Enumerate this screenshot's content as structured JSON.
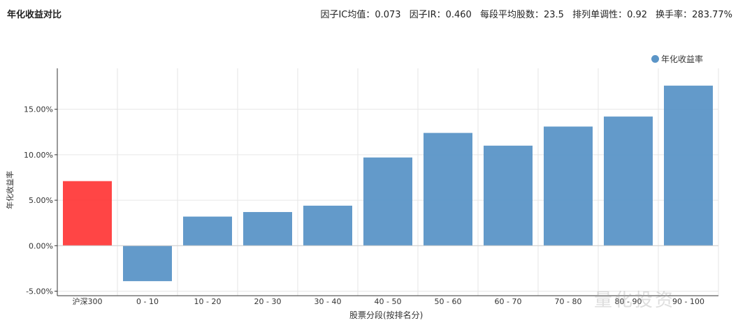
{
  "header": {
    "title": "年化收益对比",
    "stats": [
      "因子IC均值：0.073",
      "因子IR：0.460",
      "每段平均股数：23.5",
      "排列单调性：0.92",
      "换手率：283.77%"
    ]
  },
  "watermark": "量化投资",
  "chart_data": {
    "type": "bar",
    "title": "",
    "xlabel": "股票分段(按排名分)",
    "ylabel": "年化收益率",
    "ylim": [
      -0.055,
      0.195
    ],
    "yticks": [
      -0.05,
      0.0,
      0.05,
      0.1,
      0.15
    ],
    "ytick_labels": [
      "-5.00%",
      "0.00%",
      "5.00%",
      "10.00%",
      "15.00%"
    ],
    "categories": [
      "沪深300",
      "0 - 10",
      "10 - 20",
      "20 - 30",
      "30 - 40",
      "40 - 50",
      "50 - 60",
      "60 - 70",
      "70 - 80",
      "80 - 90",
      "90 - 100"
    ],
    "series": [
      {
        "name": "年化收益率",
        "values": [
          0.071,
          -0.039,
          0.032,
          0.037,
          0.044,
          0.097,
          0.124,
          0.11,
          0.131,
          0.142,
          0.176
        ],
        "color": "#5b95c7",
        "highlight_color": "#ff3b3b",
        "highlight_index": 0
      }
    ],
    "grid": true,
    "legend": "top-right"
  }
}
